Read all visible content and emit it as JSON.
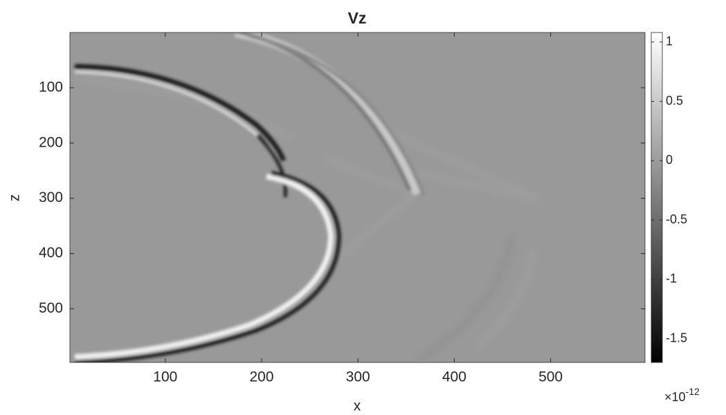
{
  "chart_data": {
    "type": "heatmap",
    "title": "Vz",
    "x_label": "x",
    "y_label": "z",
    "xlim": [
      1,
      598
    ],
    "xticks": [
      100,
      200,
      300,
      400,
      500
    ],
    "ylim": [
      0,
      597
    ],
    "yticks": [
      100,
      200,
      300,
      400,
      500
    ],
    "y_reversed": true,
    "colormap": [
      "#000000",
      "#ffffff"
    ],
    "colorbar": {
      "clim": [
        -1.7,
        1.08
      ],
      "ticks": [
        -1.5,
        -1,
        -0.5,
        0,
        0.5,
        1
      ],
      "exponent_base": "×10",
      "exponent": "-12"
    }
  }
}
